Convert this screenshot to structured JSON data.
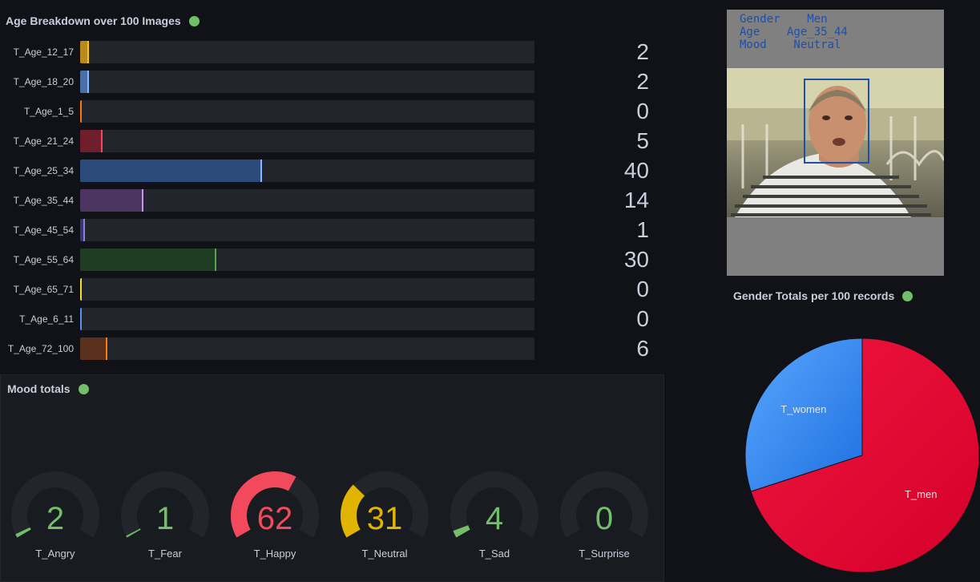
{
  "age_panel": {
    "title": "Age Breakdown over 100 Images",
    "rows": [
      {
        "label": "T_Age_12_17",
        "value": 2,
        "color": "#b88a1e",
        "cap": "#f2cc0c"
      },
      {
        "label": "T_Age_18_20",
        "value": 2,
        "color": "#4a6fa8",
        "cap": "#8ab8ff"
      },
      {
        "label": "T_Age_1_5",
        "value": 0,
        "color": "#ff780a",
        "cap": "#ff780a"
      },
      {
        "label": "T_Age_21_24",
        "value": 5,
        "color": "#6e1f2b",
        "cap": "#f2495c"
      },
      {
        "label": "T_Age_25_34",
        "value": 40,
        "color": "#2c4a7a",
        "cap": "#8ab8ff"
      },
      {
        "label": "T_Age_35_44",
        "value": 14,
        "color": "#4d3562",
        "cap": "#ca95e5"
      },
      {
        "label": "T_Age_45_54",
        "value": 1,
        "color": "#3c3570",
        "cap": "#8f7ee6"
      },
      {
        "label": "T_Age_55_64",
        "value": 30,
        "color": "#1f3d22",
        "cap": "#56a64b"
      },
      {
        "label": "T_Age_65_71",
        "value": 0,
        "color": "#fade2a",
        "cap": "#fade2a"
      },
      {
        "label": "T_Age_6_11",
        "value": 0,
        "color": "#5794f2",
        "cap": "#5794f2"
      },
      {
        "label": "T_Age_72_100",
        "value": 6,
        "color": "#5a311c",
        "cap": "#ff780a"
      }
    ],
    "max": 100
  },
  "mood_panel": {
    "title": "Mood totals",
    "gauges": [
      {
        "label": "T_Angry",
        "value": 2,
        "color": "#73bf69"
      },
      {
        "label": "T_Fear",
        "value": 1,
        "color": "#73bf69"
      },
      {
        "label": "T_Happy",
        "value": 62,
        "color": "#f2495c"
      },
      {
        "label": "T_Neutral",
        "value": 31,
        "color": "#e0b400"
      },
      {
        "label": "T_Sad",
        "value": 4,
        "color": "#73bf69"
      },
      {
        "label": "T_Surprise",
        "value": 0,
        "color": "#73bf69"
      }
    ],
    "max": 100
  },
  "image_panel": {
    "line1": "Gender    Men",
    "line2": "Age    Age_35_44",
    "line3": "Mood    Neutral"
  },
  "gender_panel": {
    "title": "Gender Totals per 100 records",
    "chart_data": {
      "type": "pie",
      "slices": [
        {
          "label": "T_women",
          "value": 30,
          "color": "#3d8df0"
        },
        {
          "label": "T_men",
          "value": 70,
          "color": "#e0002e"
        }
      ]
    }
  }
}
